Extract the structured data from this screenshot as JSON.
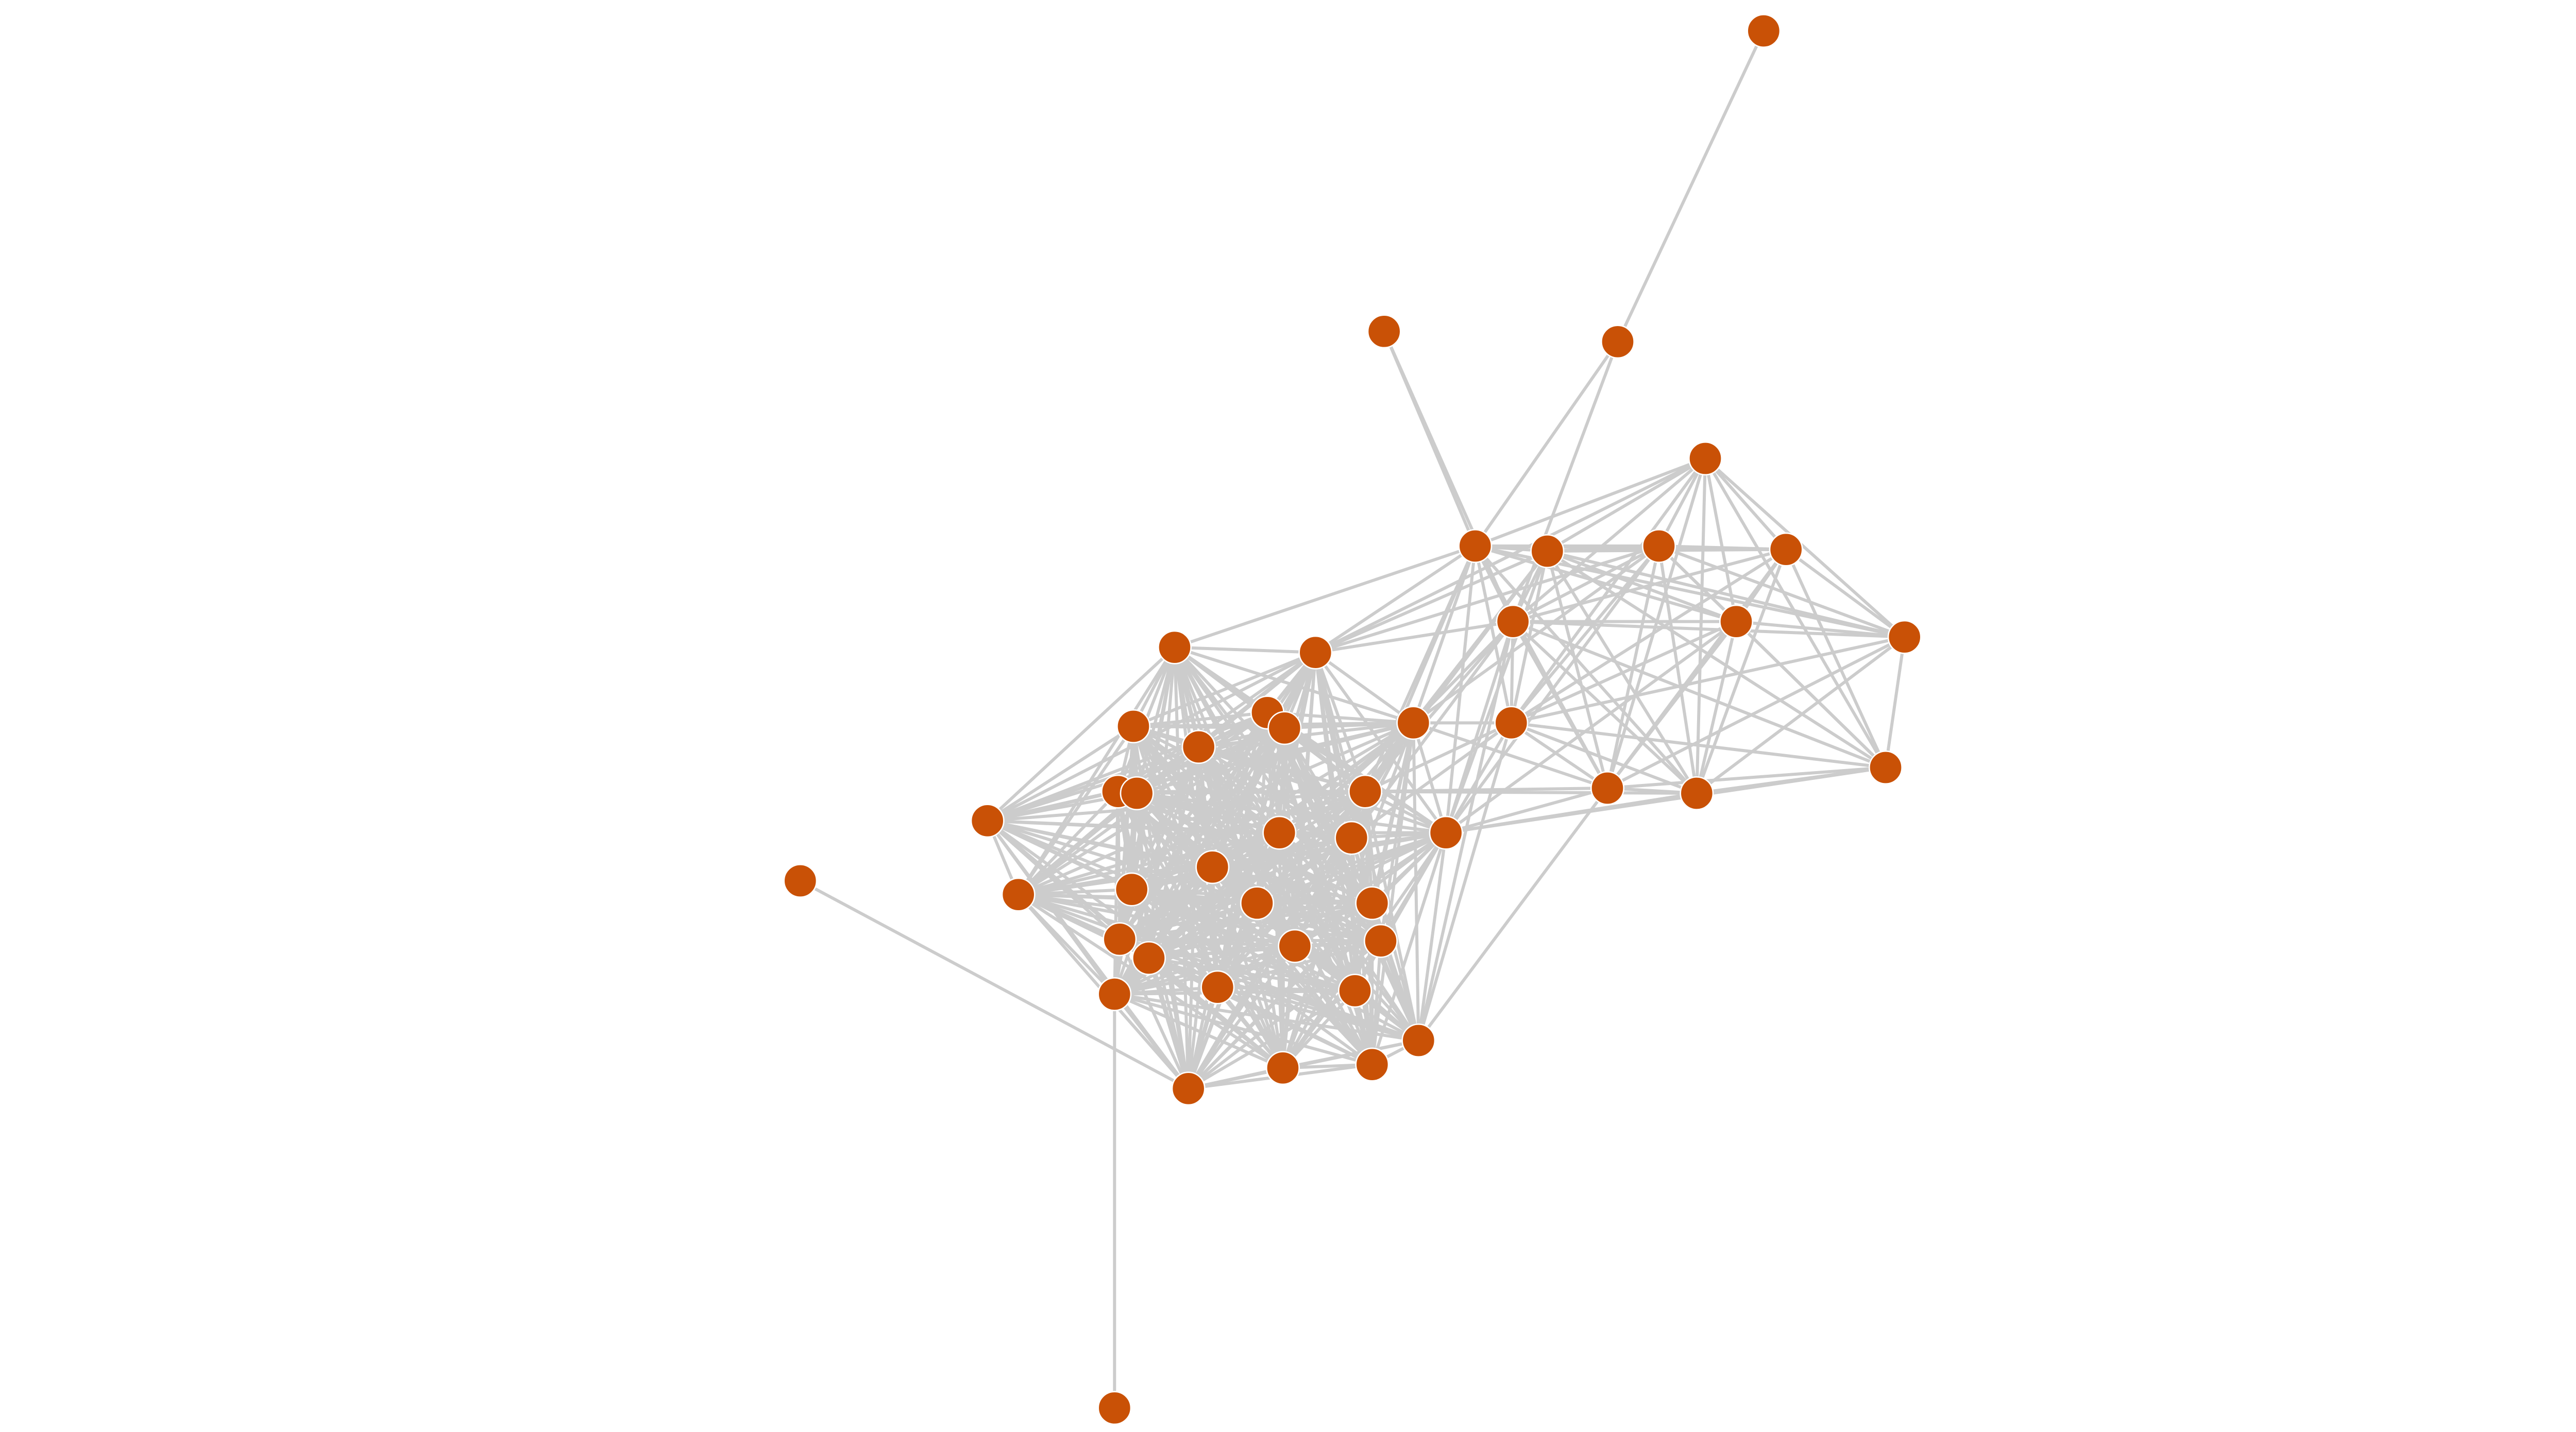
{
  "graph": {
    "type": "network",
    "node_color": "#c95106",
    "edge_color": "#cccccc",
    "background": "#ffffff",
    "node_count": 47,
    "cliques": [
      [
        15,
        16,
        17,
        18,
        19,
        20,
        21,
        22,
        23,
        24,
        25,
        26,
        27,
        28,
        29,
        31,
        32,
        33,
        34,
        35,
        36,
        37,
        38,
        39,
        40,
        41,
        42,
        43,
        44,
        45
      ],
      [
        3,
        4,
        5,
        6,
        7,
        8,
        9,
        10,
        11,
        12,
        13,
        14
      ]
    ],
    "edges": [
      [
        0,
        2
      ],
      [
        2,
        4
      ],
      [
        2,
        8
      ],
      [
        1,
        4
      ],
      [
        1,
        8
      ],
      [
        30,
        43
      ],
      [
        46,
        39
      ],
      [
        4,
        15
      ],
      [
        4,
        16
      ],
      [
        4,
        17
      ],
      [
        4,
        24
      ],
      [
        4,
        28
      ],
      [
        4,
        27
      ],
      [
        5,
        16
      ],
      [
        5,
        17
      ],
      [
        5,
        24
      ],
      [
        5,
        28
      ],
      [
        8,
        16
      ],
      [
        8,
        17
      ],
      [
        8,
        24
      ],
      [
        8,
        27
      ],
      [
        8,
        28
      ],
      [
        8,
        42
      ],
      [
        11,
        17
      ],
      [
        11,
        24
      ],
      [
        11,
        28
      ],
      [
        11,
        27
      ],
      [
        11,
        42
      ],
      [
        6,
        17
      ],
      [
        6,
        28
      ],
      [
        9,
        28
      ],
      [
        13,
        28
      ],
      [
        13,
        24
      ],
      [
        13,
        17
      ],
      [
        14,
        24
      ],
      [
        14,
        28
      ],
      [
        13,
        42
      ],
      [
        12,
        28
      ],
      [
        3,
        16
      ],
      [
        6,
        16
      ]
    ]
  }
}
